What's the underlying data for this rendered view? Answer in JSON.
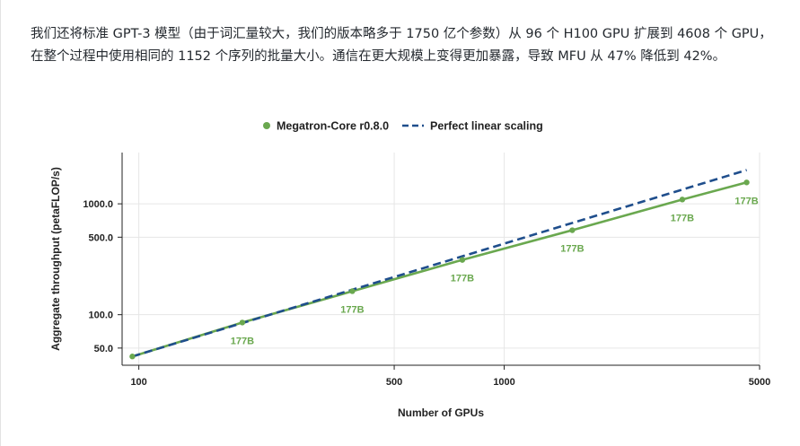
{
  "paragraph": "我们还将标准 GPT-3 模型（由于词汇量较大，我们的版本略多于 1750 亿个参数）从 96 个 H100 GPU 扩展到 4608 个 GPU，在整个过程中使用相同的 1152 个序列的批量大小。通信在更大规模上变得更加暴露，导致 MFU 从 47% 降低到 42%。",
  "colors": {
    "measured": "#6aa84f",
    "ideal": "#1f4e8c"
  },
  "chart_data": {
    "type": "line",
    "xlabel": "Number of GPUs",
    "ylabel": "Aggregate throughput (petaFLOP/s)",
    "xscale": "log",
    "yscale": "log",
    "xlim": [
      90,
      5000
    ],
    "ylim": [
      35,
      2900
    ],
    "xticks": [
      100,
      500,
      1000,
      5000
    ],
    "xtick_labels": [
      "100",
      "500",
      "1000",
      "5000"
    ],
    "yticks": [
      50,
      100,
      500,
      1000
    ],
    "ytick_labels": [
      "50.0",
      "100.0",
      "500.0",
      "1000.0"
    ],
    "grid": true,
    "legend_position": "top-center",
    "series": [
      {
        "name": "Megatron-Core r0.8.0",
        "style": "solid-with-markers",
        "x": [
          96,
          192,
          384,
          768,
          1536,
          3072,
          4608
        ],
        "y": [
          42,
          85,
          163,
          312,
          578,
          1093,
          1560
        ],
        "data_labels": [
          "",
          "177B",
          "177B",
          "177B",
          "177B",
          "177B",
          "177B"
        ]
      },
      {
        "name": "Perfect linear scaling",
        "style": "dashed",
        "x": [
          96,
          4608
        ],
        "y": [
          42,
          2016
        ]
      }
    ]
  }
}
